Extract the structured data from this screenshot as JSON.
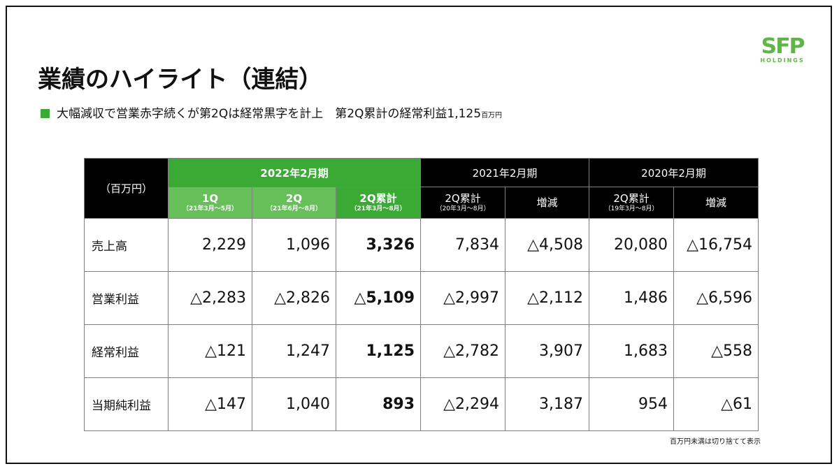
{
  "logo": {
    "mark": "SFP",
    "sub": "HOLDINGS"
  },
  "title": "業績のハイライト（連結）",
  "subtitle": {
    "text": "大幅減収で営業赤字続くが第2Qは経常黒字を計上　第2Q累計の経常利益1,125",
    "unit": "百万円"
  },
  "colors": {
    "accent_green": "#3aaa35",
    "light_green": "#67bf5a",
    "header_black": "#000000"
  },
  "table": {
    "unit_label": "（百万円）",
    "groups": [
      "2022年2月期",
      "2021年2月期",
      "2020年2月期"
    ],
    "columns": [
      {
        "label": "1Q",
        "range": "（21年3月～5月）"
      },
      {
        "label": "2Q",
        "range": "（21年6月～8月）"
      },
      {
        "label": "2Q累計",
        "range": "（21年3月～8月）"
      },
      {
        "label": "2Q累計",
        "range": "（20年3月～8月）"
      },
      {
        "label": "増減",
        "range": ""
      },
      {
        "label": "2Q累計",
        "range": "（19年3月～8月）"
      },
      {
        "label": "増減",
        "range": ""
      }
    ],
    "rows": [
      {
        "label": "売上高",
        "values": [
          "2,229",
          "1,096",
          "3,326",
          "7,834",
          "△4,508",
          "20,080",
          "△16,754"
        ]
      },
      {
        "label": "営業利益",
        "values": [
          "△2,283",
          "△2,826",
          "△5,109",
          "△2,997",
          "△2,112",
          "1,486",
          "△6,596"
        ]
      },
      {
        "label": "経常利益",
        "values": [
          "△121",
          "1,247",
          "1,125",
          "△2,782",
          "3,907",
          "1,683",
          "△558"
        ]
      },
      {
        "label": "当期純利益",
        "values": [
          "△147",
          "1,040",
          "893",
          "△2,294",
          "3,187",
          "954",
          "△61"
        ]
      }
    ]
  },
  "footnote": "百万円未満は切り捨てて表示"
}
